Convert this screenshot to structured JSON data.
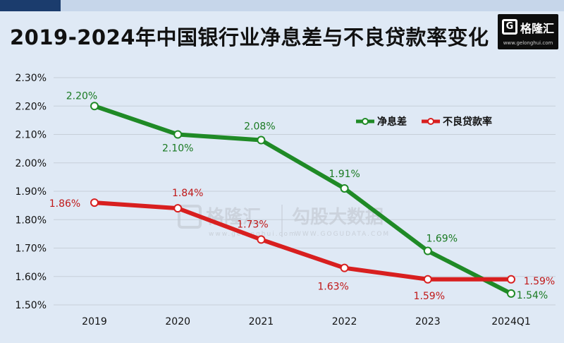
{
  "header": {
    "title": "2019-2024年中国银行业净息差与不良贷款率变化"
  },
  "logo": {
    "mark": "G",
    "name": "格隆汇",
    "url": "www.gelonghui.com"
  },
  "watermark": {
    "left_name": "格隆汇",
    "left_url": "www.gelonghui.com",
    "right_name": "勾股大数据",
    "right_url": "WWW.GOGUDATA.COM"
  },
  "colors": {
    "nim": "#1f8a26",
    "npl": "#d81f1f",
    "nim_label": "#1a7a22",
    "npl_label": "#c01818"
  },
  "chart_data": {
    "type": "line",
    "title": "2019-2024年中国银行业净息差与不良贷款率变化",
    "categories": [
      "2019",
      "2020",
      "2021",
      "2022",
      "2023",
      "2024Q1"
    ],
    "ylim": [
      1.5,
      2.3
    ],
    "y_ticks": [
      "2.30%",
      "2.20%",
      "2.10%",
      "2.00%",
      "1.90%",
      "1.80%",
      "1.70%",
      "1.60%",
      "1.50%"
    ],
    "grid": "horizontal",
    "legend_position": "top-right",
    "series": [
      {
        "name": "净息差",
        "values": [
          2.2,
          2.1,
          2.08,
          1.91,
          1.69,
          1.54
        ],
        "labels": [
          "2.20%",
          "2.10%",
          "2.08%",
          "1.91%",
          "1.69%",
          "1.54%"
        ]
      },
      {
        "name": "不良贷款率",
        "values": [
          1.86,
          1.84,
          1.73,
          1.63,
          1.59,
          1.59
        ],
        "labels": [
          "1.86%",
          "1.84%",
          "1.73%",
          "1.63%",
          "1.59%",
          "1.59%"
        ]
      }
    ]
  }
}
